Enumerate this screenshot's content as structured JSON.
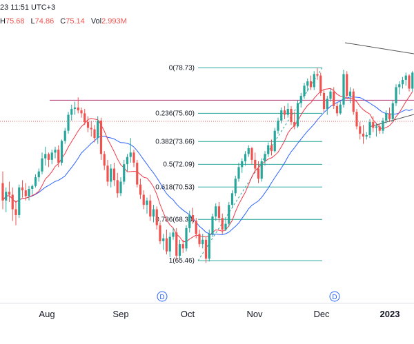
{
  "header": {
    "datetime": "23 11:51 UTC+3",
    "ohlc": [
      {
        "key": "H",
        "value": "75.68"
      },
      {
        "key": "L",
        "value": "74.86"
      },
      {
        "key": "C",
        "value": "75.14"
      },
      {
        "key": "Vol",
        "value": "2.993M"
      }
    ]
  },
  "chart_data": {
    "type": "candlestick",
    "x_axis_labels": [
      "Aug",
      "Sep",
      "Oct",
      "Nov",
      "Dec",
      "2023"
    ],
    "y_range": [
      63.0,
      81.5
    ],
    "fibonacci": [
      {
        "label": "0(78.73)",
        "price": 78.73
      },
      {
        "label": "0.236(75.60)",
        "price": 75.6
      },
      {
        "label": "0.382(73.66)",
        "price": 73.66
      },
      {
        "label": "0.5(72.09)",
        "price": 72.09
      },
      {
        "label": "0.618(70.53)",
        "price": 70.53
      },
      {
        "label": "0.786(68.30)",
        "price": 68.3
      },
      {
        "label": "1(65.46)",
        "price": 65.46
      }
    ],
    "fib_color": "#26a69a",
    "dividend_markers": [
      "D",
      "D"
    ],
    "horizontal_line_price": 76.5,
    "horizontal_dotted_price": 75.05,
    "up_color": "#26a69a",
    "down_color": "#ef5350",
    "ma_fast_color": "#f23645",
    "ma_slow_color": "#2962ff",
    "candles": [
      [
        70.8,
        71.6,
        69.0,
        69.6
      ],
      [
        69.6,
        70.5,
        68.8,
        70.2
      ],
      [
        70.2,
        70.9,
        69.5,
        70.0
      ],
      [
        70.0,
        70.5,
        68.2,
        69.0
      ],
      [
        69.0,
        69.6,
        67.9,
        68.6
      ],
      [
        68.6,
        70.7,
        68.4,
        70.5
      ],
      [
        70.5,
        71.0,
        69.8,
        70.3
      ],
      [
        70.3,
        70.8,
        69.6,
        69.9
      ],
      [
        69.9,
        70.6,
        69.6,
        70.4
      ],
      [
        70.4,
        70.7,
        70.0,
        70.6
      ],
      [
        70.6,
        71.4,
        70.5,
        71.2
      ],
      [
        71.2,
        71.8,
        70.9,
        71.6
      ],
      [
        71.6,
        72.9,
        71.4,
        72.5
      ],
      [
        72.5,
        73.3,
        72.0,
        72.8
      ],
      [
        72.8,
        72.9,
        71.9,
        72.4
      ],
      [
        72.4,
        73.1,
        72.1,
        72.9
      ],
      [
        72.9,
        73.3,
        72.5,
        73.1
      ],
      [
        73.1,
        73.4,
        71.9,
        72.2
      ],
      [
        72.2,
        73.8,
        72.0,
        73.7
      ],
      [
        73.7,
        74.6,
        73.5,
        74.4
      ],
      [
        74.4,
        75.7,
        74.2,
        75.5
      ],
      [
        75.5,
        76.2,
        75.1,
        75.9
      ],
      [
        75.9,
        76.4,
        75.5,
        76.0
      ],
      [
        76.0,
        76.7,
        75.6,
        75.8
      ],
      [
        75.8,
        76.0,
        75.3,
        75.6
      ],
      [
        75.6,
        75.9,
        74.8,
        75.0
      ],
      [
        75.0,
        75.4,
        74.3,
        74.6
      ],
      [
        74.6,
        75.1,
        74.0,
        74.5
      ],
      [
        74.5,
        74.8,
        73.6,
        73.9
      ],
      [
        73.9,
        75.4,
        73.5,
        75.1
      ],
      [
        75.1,
        75.3,
        72.4,
        72.8
      ],
      [
        72.8,
        73.0,
        71.7,
        72.0
      ],
      [
        72.0,
        72.4,
        70.6,
        70.9
      ],
      [
        70.9,
        72.1,
        70.5,
        71.8
      ],
      [
        71.8,
        72.2,
        70.6,
        71.0
      ],
      [
        71.0,
        71.5,
        69.8,
        70.1
      ],
      [
        70.1,
        71.2,
        69.9,
        70.9
      ],
      [
        70.9,
        72.4,
        70.7,
        72.1
      ],
      [
        72.1,
        72.8,
        71.6,
        72.6
      ],
      [
        72.6,
        73.9,
        72.2,
        72.9
      ],
      [
        72.9,
        73.1,
        71.9,
        72.2
      ],
      [
        72.2,
        72.4,
        70.5,
        70.7
      ],
      [
        70.7,
        71.1,
        69.7,
        70.0
      ],
      [
        70.0,
        70.3,
        69.0,
        69.3
      ],
      [
        69.3,
        69.8,
        68.7,
        69.6
      ],
      [
        69.6,
        70.0,
        68.2,
        68.5
      ],
      [
        68.5,
        69.3,
        68.1,
        69.0
      ],
      [
        69.0,
        69.2,
        67.6,
        67.9
      ],
      [
        67.9,
        68.1,
        66.6,
        66.8
      ],
      [
        66.8,
        67.3,
        66.2,
        67.0
      ],
      [
        67.0,
        67.6,
        65.9,
        66.1
      ],
      [
        66.1,
        67.4,
        65.7,
        67.1
      ],
      [
        67.1,
        67.7,
        66.9,
        67.4
      ],
      [
        67.4,
        67.7,
        65.5,
        65.8
      ],
      [
        65.8,
        66.9,
        65.6,
        66.6
      ],
      [
        66.6,
        66.9,
        66.0,
        66.3
      ],
      [
        66.3,
        67.9,
        66.1,
        67.7
      ],
      [
        67.7,
        68.9,
        67.4,
        68.6
      ],
      [
        68.6,
        69.1,
        68.0,
        68.2
      ],
      [
        68.2,
        68.4,
        67.0,
        67.3
      ],
      [
        67.3,
        67.6,
        66.4,
        66.6
      ],
      [
        66.6,
        67.3,
        66.3,
        66.9
      ],
      [
        66.9,
        67.1,
        65.3,
        65.6
      ],
      [
        65.6,
        67.6,
        65.4,
        67.3
      ],
      [
        67.3,
        68.7,
        67.1,
        68.5
      ],
      [
        68.5,
        69.4,
        68.2,
        69.2
      ],
      [
        69.2,
        69.5,
        68.1,
        68.4
      ],
      [
        68.4,
        68.7,
        67.3,
        67.6
      ],
      [
        67.6,
        68.3,
        67.5,
        68.0
      ],
      [
        68.0,
        69.5,
        67.8,
        69.3
      ],
      [
        69.3,
        70.3,
        69.1,
        70.1
      ],
      [
        70.1,
        71.3,
        69.9,
        71.1
      ],
      [
        71.1,
        72.2,
        70.9,
        71.9
      ],
      [
        71.9,
        72.5,
        71.5,
        72.3
      ],
      [
        72.3,
        73.0,
        72.0,
        72.8
      ],
      [
        72.8,
        73.4,
        72.6,
        73.2
      ],
      [
        73.2,
        73.3,
        72.1,
        72.4
      ],
      [
        72.4,
        72.9,
        71.5,
        71.8
      ],
      [
        71.8,
        72.3,
        70.8,
        71.1
      ],
      [
        71.1,
        72.5,
        70.9,
        72.3
      ],
      [
        72.3,
        73.0,
        72.0,
        72.8
      ],
      [
        72.8,
        73.6,
        72.6,
        73.4
      ],
      [
        73.4,
        73.8,
        72.7,
        73.0
      ],
      [
        73.0,
        74.6,
        72.9,
        74.4
      ],
      [
        74.4,
        75.3,
        74.2,
        75.1
      ],
      [
        75.1,
        76.0,
        74.9,
        75.8
      ],
      [
        75.8,
        76.1,
        75.2,
        75.5
      ],
      [
        75.5,
        76.3,
        75.3,
        75.9
      ],
      [
        75.9,
        76.1,
        74.8,
        75.0
      ],
      [
        75.0,
        75.7,
        74.5,
        74.7
      ],
      [
        74.7,
        76.5,
        74.6,
        76.3
      ],
      [
        76.3,
        77.0,
        76.0,
        76.8
      ],
      [
        76.8,
        77.7,
        76.6,
        77.5
      ],
      [
        77.5,
        78.0,
        77.1,
        77.8
      ],
      [
        77.8,
        78.2,
        77.2,
        77.4
      ],
      [
        77.4,
        78.5,
        77.2,
        78.3
      ],
      [
        78.3,
        78.73,
        77.9,
        78.2
      ],
      [
        78.2,
        78.4,
        76.8,
        77.0
      ],
      [
        77.0,
        77.2,
        75.7,
        75.9
      ],
      [
        75.9,
        76.8,
        75.5,
        76.6
      ],
      [
        76.6,
        77.3,
        76.4,
        77.1
      ],
      [
        77.1,
        77.4,
        75.9,
        76.1
      ],
      [
        76.1,
        76.3,
        75.4,
        75.6
      ],
      [
        75.6,
        76.4,
        75.5,
        76.2
      ],
      [
        76.2,
        78.6,
        76.0,
        78.3
      ],
      [
        78.3,
        78.5,
        76.6,
        76.8
      ],
      [
        76.8,
        77.4,
        76.3,
        77.1
      ],
      [
        77.1,
        77.3,
        75.5,
        75.7
      ],
      [
        75.7,
        75.9,
        74.5,
        74.7
      ],
      [
        74.7,
        75.0,
        73.8,
        74.2
      ],
      [
        74.2,
        74.8,
        73.5,
        74.0
      ],
      [
        74.0,
        74.3,
        73.8,
        74.1
      ],
      [
        74.1,
        75.2,
        73.9,
        75.0
      ],
      [
        75.0,
        75.4,
        74.3,
        74.6
      ],
      [
        74.6,
        74.9,
        74.0,
        74.7
      ],
      [
        74.7,
        74.9,
        74.2,
        74.4
      ],
      [
        74.4,
        75.3,
        74.2,
        75.1
      ],
      [
        75.1,
        75.8,
        74.9,
        75.6
      ],
      [
        75.6,
        76.0,
        75.0,
        75.2
      ],
      [
        75.2,
        76.5,
        75.0,
        76.3
      ],
      [
        76.3,
        77.6,
        76.1,
        77.4
      ],
      [
        77.4,
        77.8,
        76.9,
        77.6
      ],
      [
        77.6,
        78.1,
        77.3,
        77.9
      ],
      [
        77.9,
        78.4,
        77.5,
        78.2
      ],
      [
        78.2,
        78.3,
        77.1,
        77.3
      ],
      [
        77.3,
        78.5,
        77.1,
        78.4
      ]
    ]
  }
}
